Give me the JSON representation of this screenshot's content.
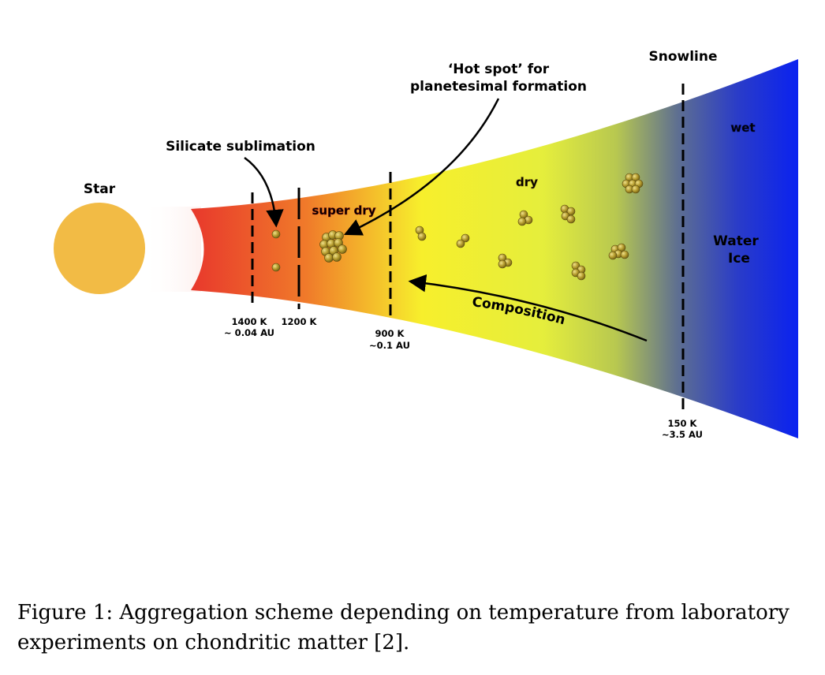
{
  "figure": {
    "labels": {
      "star": "Star",
      "silicate_sublimation": "Silicate sublimation",
      "hot_spot_line1": "‘Hot spot’ for",
      "hot_spot_line2": "planetesimal formation",
      "snowline": "Snowline",
      "super_dry": "super dry",
      "dry": "dry",
      "wet": "wet",
      "water_ice_line1": "Water",
      "water_ice_line2": "Ice",
      "composition": "Composition"
    },
    "boundaries": [
      {
        "temp": "1400 K",
        "dist": "~ 0.04 AU"
      },
      {
        "temp": "1200 K",
        "dist": ""
      },
      {
        "temp": "900 K",
        "dist": "~0.1 AU"
      },
      {
        "temp": "150 K",
        "dist": "~3.5 AU"
      }
    ],
    "colors": {
      "star": "#f2bb45",
      "disk_hot": "#e8382c",
      "disk_mid": "#f7ef2c",
      "disk_cool": "#5f7090",
      "disk_cold": "#0a22f0",
      "grain": "#b39a2c",
      "super_dry_text": "#e8382c",
      "dry_text": "#c9b22e",
      "wet_text": "#1f2fd8"
    }
  },
  "caption": "Figure 1: Aggregation scheme depending on temperature from laboratory experiments on chondritic matter [2]."
}
